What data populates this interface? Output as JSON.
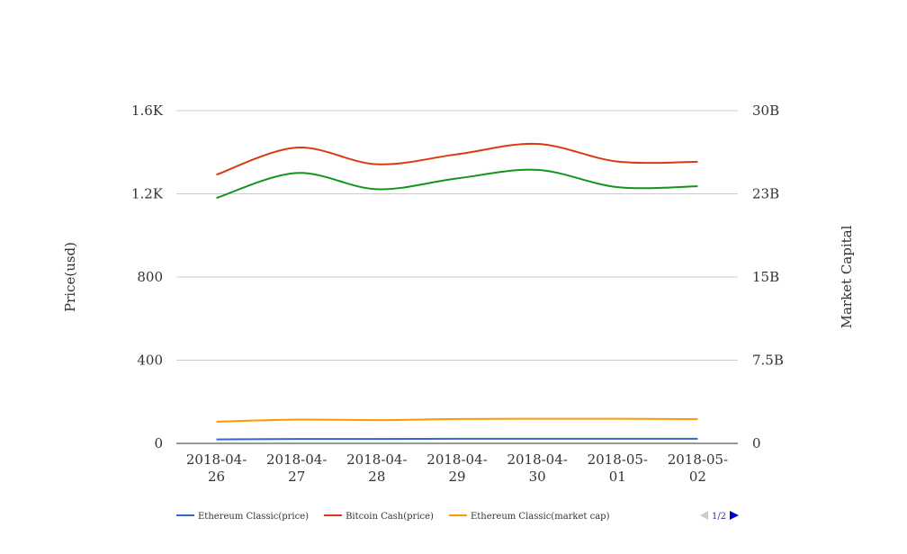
{
  "chart_data": {
    "type": "line",
    "categories": [
      [
        "2018-04-",
        "26"
      ],
      [
        "2018-04-",
        "27"
      ],
      [
        "2018-04-",
        "28"
      ],
      [
        "2018-04-",
        "29"
      ],
      [
        "2018-04-",
        "30"
      ],
      [
        "2018-05-",
        "01"
      ],
      [
        "2018-05-",
        "02"
      ]
    ],
    "y_left": {
      "label": "Price(usd)",
      "ticks": [
        "0",
        "400",
        "800",
        "1.2K",
        "1.6K"
      ],
      "range": [
        0,
        1600
      ]
    },
    "y_right": {
      "label": "Market Capital",
      "ticks": [
        "0",
        "7.5B",
        "15B",
        "23B",
        "30B"
      ],
      "range": [
        0,
        30000000000
      ]
    },
    "series": [
      {
        "name": "Ethereum Classic(price)",
        "axis": "left",
        "color": "#3366cc",
        "values": [
          19,
          21,
          21,
          22,
          22,
          22,
          22
        ]
      },
      {
        "name": "Bitcoin Cash(price)",
        "axis": "left",
        "color": "#dc3912",
        "values": [
          1292,
          1422,
          1342,
          1390,
          1440,
          1355,
          1354
        ]
      },
      {
        "name": "Ethereum Classic(market cap)",
        "axis": "right",
        "color": "#ff9900",
        "values": [
          1950000000.0,
          2150000000.0,
          2100000000.0,
          2200000000.0,
          2220000000.0,
          2220000000.0,
          2180000000.0
        ]
      },
      {
        "name": "",
        "axis": "left",
        "color": "#109618",
        "values": [
          1180,
          1300,
          1222,
          1274,
          1315,
          1232,
          1236
        ]
      }
    ],
    "legend": {
      "position": "bottom",
      "page": "1/2"
    },
    "grid": true
  }
}
